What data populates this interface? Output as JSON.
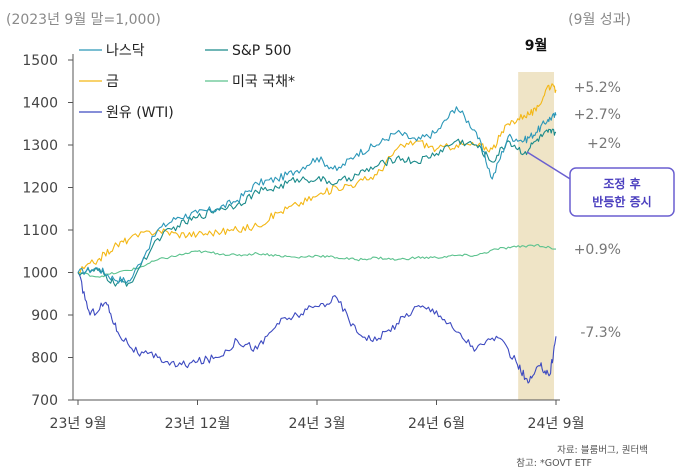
{
  "chart_data": {
    "type": "line",
    "title": "",
    "subtitle_left": "(2023년 9월 말=1,000)",
    "subtitle_right": "(9월 성과)",
    "xlabel": "",
    "ylabel": "",
    "ylim": [
      700,
      1500
    ],
    "yticks": [
      700,
      800,
      900,
      1000,
      1100,
      1200,
      1300,
      1400,
      1500
    ],
    "x_tick_labels": [
      "23년 9월",
      "23년 12월",
      "24년 3월",
      "24년 6월",
      "24년 9월"
    ],
    "x_tick_values": [
      0,
      3,
      6,
      9,
      12
    ],
    "x_range": [
      0,
      12
    ],
    "grid": false,
    "legend_placement": "top-left",
    "highlight": {
      "label": "9월",
      "x_start": 11.05,
      "x_end": 11.95,
      "color": "#efe4c6"
    },
    "callout": {
      "lines": [
        "조정 후",
        "반등한 증시"
      ],
      "border_color": "#6a5fd0",
      "text_color": "#4b3fbf"
    },
    "source_lines": [
      "자료: 블룸버그, 퀀터백",
      "참고: *GOVT ETF"
    ],
    "series": [
      {
        "name": "나스닥",
        "color": "#2b97b8",
        "end_label": "+2.7%",
        "x": [
          0,
          0.5,
          0.9,
          1.3,
          2.0,
          2.5,
          3.0,
          3.5,
          4.0,
          4.5,
          5.0,
          5.5,
          6.0,
          6.5,
          7.0,
          7.5,
          8.0,
          8.5,
          9.0,
          9.5,
          10.0,
          10.4,
          10.8,
          11.2,
          11.5,
          11.8,
          12.0
        ],
        "y": [
          1000,
          1010,
          985,
          980,
          1100,
          1130,
          1140,
          1150,
          1170,
          1210,
          1220,
          1240,
          1270,
          1240,
          1280,
          1300,
          1330,
          1310,
          1330,
          1390,
          1330,
          1220,
          1320,
          1310,
          1330,
          1360,
          1370
        ]
      },
      {
        "name": "S&P 500",
        "color": "#1a8a8a",
        "end_label": "+2%",
        "x": [
          0,
          0.5,
          0.9,
          1.3,
          2.0,
          2.5,
          3.0,
          3.5,
          4.0,
          4.5,
          5.0,
          5.5,
          6.0,
          6.5,
          7.0,
          7.5,
          8.0,
          8.5,
          9.0,
          9.5,
          10.0,
          10.4,
          10.8,
          11.2,
          11.5,
          11.8,
          12.0
        ],
        "y": [
          1000,
          1005,
          975,
          975,
          1080,
          1110,
          1130,
          1150,
          1160,
          1190,
          1200,
          1220,
          1220,
          1210,
          1230,
          1250,
          1270,
          1260,
          1280,
          1310,
          1300,
          1260,
          1310,
          1280,
          1310,
          1330,
          1330
        ]
      },
      {
        "name": "금",
        "color": "#f3b715",
        "end_label": "+5.2%",
        "x": [
          0,
          0.5,
          0.9,
          1.3,
          2.0,
          2.5,
          3.0,
          3.5,
          4.0,
          4.5,
          5.0,
          5.5,
          6.0,
          6.5,
          7.0,
          7.5,
          8.0,
          8.5,
          9.0,
          9.5,
          10.0,
          10.4,
          10.8,
          11.2,
          11.5,
          11.8,
          12.0
        ],
        "y": [
          1000,
          1030,
          1060,
          1080,
          1100,
          1090,
          1090,
          1095,
          1100,
          1110,
          1140,
          1160,
          1180,
          1200,
          1210,
          1230,
          1290,
          1310,
          1290,
          1300,
          1300,
          1290,
          1350,
          1370,
          1380,
          1440,
          1430
        ]
      },
      {
        "name": "미국 국채*",
        "color": "#5cc28e",
        "end_label": "+0.9%",
        "x": [
          0,
          0.5,
          1.0,
          1.5,
          2.0,
          2.5,
          3.0,
          3.5,
          4.0,
          4.5,
          5.0,
          5.5,
          6.0,
          6.5,
          7.0,
          7.5,
          8.0,
          8.5,
          9.0,
          9.5,
          10.0,
          10.5,
          11.0,
          11.5,
          12.0
        ],
        "y": [
          1000,
          990,
          1000,
          1010,
          1030,
          1040,
          1050,
          1045,
          1040,
          1045,
          1040,
          1035,
          1040,
          1035,
          1030,
          1035,
          1030,
          1035,
          1035,
          1040,
          1040,
          1055,
          1060,
          1065,
          1055
        ]
      },
      {
        "name": "원유 (WTI)",
        "color": "#3d4ac0",
        "end_label": "-7.3%",
        "x": [
          0,
          0.3,
          0.7,
          1.0,
          1.5,
          2.0,
          2.5,
          3.0,
          3.5,
          4.0,
          4.5,
          5.0,
          5.5,
          6.0,
          6.5,
          7.0,
          7.5,
          8.0,
          8.5,
          9.0,
          9.5,
          10.0,
          10.5,
          11.0,
          11.3,
          11.6,
          11.85,
          12.0
        ],
        "y": [
          1000,
          900,
          930,
          860,
          810,
          800,
          780,
          790,
          800,
          840,
          820,
          880,
          900,
          920,
          940,
          860,
          840,
          880,
          920,
          910,
          860,
          820,
          850,
          790,
          740,
          780,
          760,
          850
        ]
      }
    ]
  }
}
